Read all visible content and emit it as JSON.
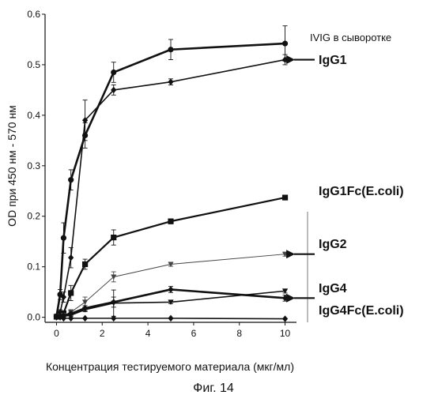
{
  "figure": {
    "caption": "Фиг. 14"
  },
  "chart_data": {
    "type": "line",
    "xlabel": "Концентрация тестируемого материала (мкг/мл)",
    "ylabel": "OD при 450 нм - 570 нм",
    "xlim": [
      -0.5,
      10.5
    ],
    "ylim": [
      -0.01,
      0.6
    ],
    "xticks": [
      0,
      2,
      4,
      6,
      8,
      10
    ],
    "yticks": [
      0.0,
      0.1,
      0.2,
      0.3,
      0.4,
      0.5,
      0.6
    ],
    "ytick_labels": [
      "0.0",
      "0.1",
      "0.2",
      "0.3",
      "0.4",
      "0.5",
      "0.6"
    ],
    "grid": false,
    "series": [
      {
        "name": "IVIG в сыворотке",
        "marker": "circle",
        "line_width": 2.6,
        "color": "#111111",
        "arrow": false,
        "x": [
          0,
          0.16,
          0.31,
          0.63,
          1.25,
          2.5,
          5,
          10
        ],
        "y": [
          0.002,
          0.045,
          0.157,
          0.272,
          0.36,
          0.485,
          0.53,
          0.542
        ],
        "err": [
          0.003,
          0.01,
          0.03,
          0.02,
          0.025,
          0.02,
          0.02,
          0.035
        ]
      },
      {
        "name": "IgG1",
        "marker": "diamond",
        "line_width": 1.6,
        "color": "#111111",
        "arrow": true,
        "x": [
          0,
          0.16,
          0.31,
          0.63,
          1.25,
          2.5,
          5,
          10
        ],
        "y": [
          0.001,
          0.01,
          0.04,
          0.118,
          0.39,
          0.45,
          0.466,
          0.51
        ],
        "err": [
          0.002,
          0.005,
          0.01,
          0.02,
          0.04,
          0.01,
          0.006,
          0.01
        ]
      },
      {
        "name": "IgG1Fc(E.coli)",
        "marker": "square",
        "line_width": 2.2,
        "color": "#111111",
        "arrow": false,
        "x": [
          0,
          0.16,
          0.31,
          0.63,
          1.25,
          2.5,
          5,
          10
        ],
        "y": [
          0.001,
          0.003,
          0.008,
          0.048,
          0.105,
          0.158,
          0.19,
          0.237
        ],
        "err": [
          0.002,
          0.003,
          0.004,
          0.015,
          0.01,
          0.015,
          0.005,
          0.004
        ]
      },
      {
        "name": "IgG2",
        "marker": "triangle-down",
        "line_width": 1.0,
        "color": "#444444",
        "arrow": true,
        "x": [
          0,
          0.16,
          0.31,
          0.63,
          1.25,
          2.5,
          5,
          10
        ],
        "y": [
          0.0,
          0.002,
          0.004,
          0.01,
          0.03,
          0.08,
          0.105,
          0.125
        ],
        "err": [
          0.002,
          0.002,
          0.002,
          0.005,
          0.01,
          0.01,
          0.004,
          0.004
        ]
      },
      {
        "name": "IgG4",
        "marker": "diamond",
        "line_width": 2.6,
        "color": "#111111",
        "arrow": true,
        "x": [
          0,
          0.16,
          0.31,
          0.63,
          1.25,
          2.5,
          5,
          10
        ],
        "y": [
          0.0,
          0.002,
          0.003,
          0.007,
          0.018,
          0.03,
          0.055,
          0.038
        ],
        "err": [
          0.002,
          0.002,
          0.002,
          0.003,
          0.005,
          0.01,
          0.006,
          0.006
        ]
      },
      {
        "name": "IgG4Fc(E.coli)",
        "marker": "triangle-down",
        "line_width": 1.6,
        "color": "#111111",
        "arrow": false,
        "x": [
          0,
          0.16,
          0.31,
          0.63,
          1.25,
          2.5,
          5,
          10
        ],
        "y": [
          0.0,
          0.001,
          0.002,
          0.004,
          0.015,
          0.028,
          0.03,
          0.052
        ],
        "err": [
          0.002,
          0.002,
          0.002,
          0.002,
          0.004,
          0.026,
          0.003,
          0.004
        ]
      },
      {
        "name": "",
        "marker": "diamond",
        "line_width": 1.6,
        "color": "#111111",
        "arrow": false,
        "x": [
          0,
          0.16,
          0.31,
          0.63,
          1.25,
          2.5,
          5,
          10
        ],
        "y": [
          0.0,
          0.0,
          -0.002,
          -0.002,
          -0.002,
          -0.002,
          -0.002,
          -0.003
        ],
        "err": [
          0,
          0,
          0,
          0,
          0,
          0,
          0,
          0
        ]
      }
    ]
  }
}
